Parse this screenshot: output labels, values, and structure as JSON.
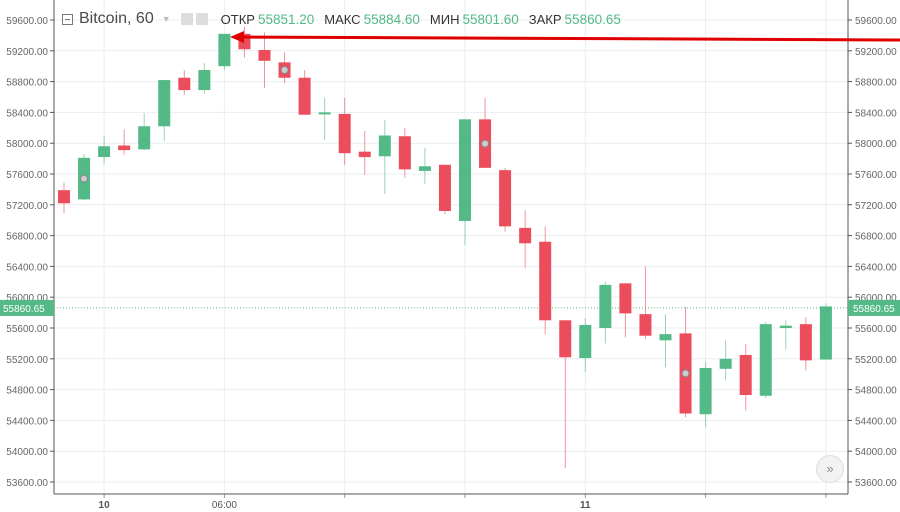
{
  "legend": {
    "symbol": "Bitcoin, 60",
    "open_label": "ОТКР",
    "open": "55851.20",
    "high_label": "МАКС",
    "high": "55884.60",
    "low_label": "МИН",
    "low": "55801.60",
    "close_label": "ЗАКР",
    "close": "55860.65"
  },
  "scroll_button": "»",
  "colors": {
    "up": "#53b987",
    "down": "#eb4d5c",
    "arrow": "#e00000",
    "grid": "#e8eef2"
  },
  "chart_data": {
    "type": "candlestick",
    "title": "Bitcoin, 60",
    "ylim": [
      53600,
      59600
    ],
    "y_ticks": [
      "59600.00",
      "59200.00",
      "58800.00",
      "58400.00",
      "58000.00",
      "57600.00",
      "57200.00",
      "56800.00",
      "56400.00",
      "56000.00",
      "55600.00",
      "55200.00",
      "54800.00",
      "54400.00",
      "54000.00",
      "53600.00"
    ],
    "x_ticks": [
      {
        "index": 2,
        "label": "10"
      },
      {
        "index": 8,
        "label": "06:00"
      },
      {
        "index": 14,
        "label": ""
      },
      {
        "index": 20,
        "label": ""
      },
      {
        "index": 26,
        "label": "11"
      },
      {
        "index": 32,
        "label": ""
      },
      {
        "index": 38,
        "label": ""
      }
    ],
    "current_price": 55860.65,
    "current_price_label": "55860.65",
    "markers": [
      1,
      11,
      21,
      31
    ],
    "candles": [
      [
        57390,
        57490,
        57090,
        57220
      ],
      [
        57270,
        57860,
        57260,
        57810
      ],
      [
        57820,
        58100,
        57730,
        57960
      ],
      [
        57970,
        58180,
        57850,
        57910
      ],
      [
        57920,
        58390,
        57910,
        58220
      ],
      [
        58220,
        58820,
        58030,
        58820
      ],
      [
        58850,
        58950,
        58630,
        58690
      ],
      [
        58690,
        59040,
        58640,
        58950
      ],
      [
        59000,
        59420,
        58950,
        59420
      ],
      [
        59420,
        59510,
        59110,
        59220
      ],
      [
        59210,
        59440,
        58720,
        59070
      ],
      [
        59050,
        59180,
        58780,
        58850
      ],
      [
        58850,
        58950,
        58370,
        58370
      ],
      [
        58380,
        58590,
        58040,
        58400
      ],
      [
        58380,
        58590,
        57720,
        57870
      ],
      [
        57890,
        58160,
        57590,
        57820
      ],
      [
        57830,
        58300,
        57340,
        58100
      ],
      [
        58090,
        58200,
        57550,
        57660
      ],
      [
        57640,
        57940,
        57470,
        57700
      ],
      [
        57720,
        57720,
        57080,
        57120
      ],
      [
        56990,
        58310,
        56680,
        58310
      ],
      [
        58310,
        58590,
        57680,
        57680
      ],
      [
        57650,
        57680,
        56850,
        56920
      ],
      [
        56900,
        57130,
        56380,
        56700
      ],
      [
        56720,
        56920,
        55520,
        55700
      ],
      [
        55700,
        55700,
        53780,
        55220
      ],
      [
        55210,
        55730,
        55030,
        55640
      ],
      [
        55600,
        56200,
        55400,
        56160
      ],
      [
        56180,
        56180,
        55480,
        55790
      ],
      [
        55780,
        56400,
        55460,
        55500
      ],
      [
        55440,
        55780,
        55090,
        55520
      ],
      [
        55530,
        55870,
        54440,
        54490
      ],
      [
        54480,
        55160,
        54310,
        55080
      ],
      [
        55070,
        55440,
        54920,
        55200
      ],
      [
        55250,
        55390,
        54530,
        54730
      ],
      [
        54720,
        55680,
        54690,
        55650
      ],
      [
        55600,
        55700,
        55320,
        55630
      ],
      [
        55650,
        55740,
        55050,
        55180
      ],
      [
        55190,
        55920,
        55190,
        55880
      ]
    ]
  }
}
